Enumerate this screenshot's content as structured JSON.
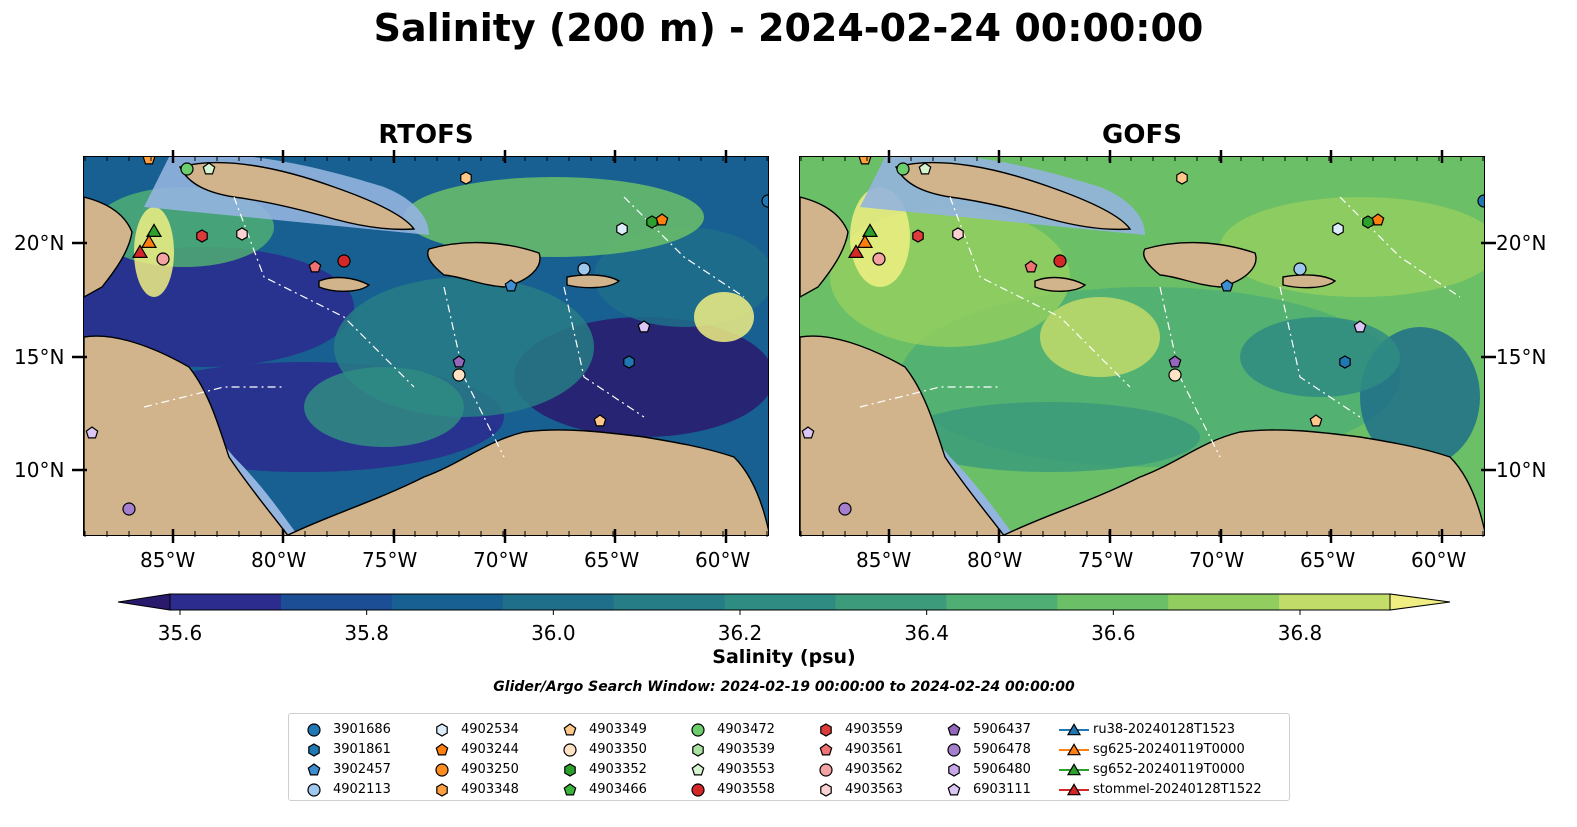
{
  "title": "Salinity (200 m) - 2024-02-24 00:00:00",
  "panels": [
    {
      "title": "RTOFS",
      "palette": "low"
    },
    {
      "title": "GOFS",
      "palette": "high"
    }
  ],
  "x_ticks": [
    "85°W",
    "80°W",
    "75°W",
    "70°W",
    "65°W",
    "60°W"
  ],
  "y_ticks": [
    "20°N",
    "15°N",
    "10°N"
  ],
  "colorbar": {
    "label": "Salinity (psu)",
    "ticks": [
      "35.6",
      "35.8",
      "36.0",
      "36.2",
      "36.4",
      "36.6",
      "36.8"
    ],
    "colors": [
      "#2a1a6e",
      "#2c2c8e",
      "#1b4e95",
      "#176091",
      "#1f6f8a",
      "#277d86",
      "#2f8c82",
      "#3c9b7b",
      "#4fae73",
      "#6bc067",
      "#92ce5f",
      "#c2dc6a",
      "#f0ee82"
    ]
  },
  "search_window": "Glider/Argo Search Window: 2024-02-19 00:00:00 to 2024-02-24 00:00:00",
  "legend": [
    {
      "label": "3901686",
      "marker": "circle",
      "color": "#1f77b4"
    },
    {
      "label": "3901861",
      "marker": "hexagon",
      "color": "#1f77b4"
    },
    {
      "label": "3902457",
      "marker": "pentagon",
      "color": "#3c8ed0"
    },
    {
      "label": "4902113",
      "marker": "circle",
      "color": "#9fc8ee"
    },
    {
      "label": "4902534",
      "marker": "hexagon",
      "color": "#dcecfb"
    },
    {
      "label": "4903244",
      "marker": "pentagon",
      "color": "#ff7f0e"
    },
    {
      "label": "4903250",
      "marker": "circle",
      "color": "#ff8c1e"
    },
    {
      "label": "4903348",
      "marker": "hexagon",
      "color": "#ffa040"
    },
    {
      "label": "4903349",
      "marker": "pentagon",
      "color": "#ffc88a"
    },
    {
      "label": "4903350",
      "marker": "circle",
      "color": "#ffe3c4"
    },
    {
      "label": "4903352",
      "marker": "hexagon",
      "color": "#2ca02c"
    },
    {
      "label": "4903466",
      "marker": "pentagon",
      "color": "#3cb43c"
    },
    {
      "label": "4903472",
      "marker": "circle",
      "color": "#6ccd6c"
    },
    {
      "label": "4903539",
      "marker": "hexagon",
      "color": "#a8e4a0"
    },
    {
      "label": "4903553",
      "marker": "pentagon",
      "color": "#d5f5d0"
    },
    {
      "label": "4903558",
      "marker": "circle",
      "color": "#d62728"
    },
    {
      "label": "4903559",
      "marker": "hexagon",
      "color": "#dd3b3b"
    },
    {
      "label": "4903561",
      "marker": "pentagon",
      "color": "#f07272"
    },
    {
      "label": "4903562",
      "marker": "circle",
      "color": "#f4a3a3"
    },
    {
      "label": "4903563",
      "marker": "hexagon",
      "color": "#fad2d2"
    },
    {
      "label": "5906437",
      "marker": "pentagon",
      "color": "#9467bd"
    },
    {
      "label": "5906478",
      "marker": "circle",
      "color": "#a57fce"
    },
    {
      "label": "5906480",
      "marker": "hexagon",
      "color": "#c8a7e8"
    },
    {
      "label": "6903111",
      "marker": "pentagon",
      "color": "#dcc6f5"
    },
    {
      "label": "ru38-20240128T1523",
      "marker": "triangle-line",
      "color": "#1f77b4"
    },
    {
      "label": "sg625-20240119T0000",
      "marker": "triangle-line",
      "color": "#ff7f0e"
    },
    {
      "label": "sg652-20240119T0000",
      "marker": "triangle-line",
      "color": "#2ca02c"
    },
    {
      "label": "stommel-20240128T1522",
      "marker": "triangle-line",
      "color": "#d62728"
    }
  ],
  "land_color": "#d2b48c",
  "shelf_color": "#93b4df"
}
